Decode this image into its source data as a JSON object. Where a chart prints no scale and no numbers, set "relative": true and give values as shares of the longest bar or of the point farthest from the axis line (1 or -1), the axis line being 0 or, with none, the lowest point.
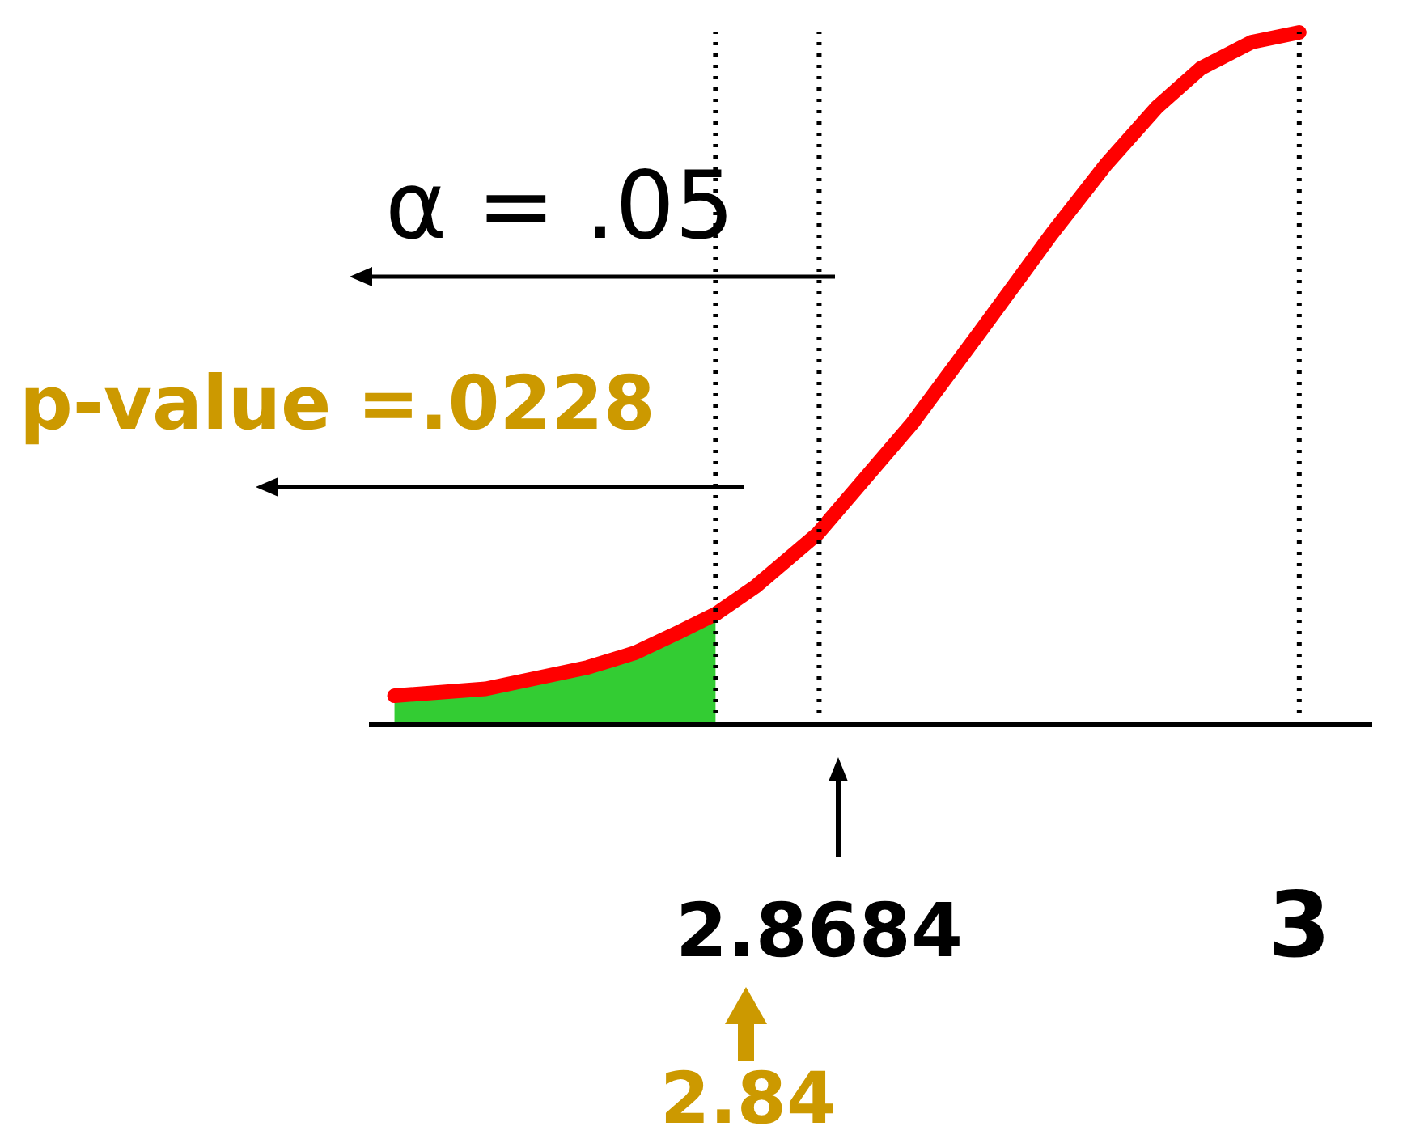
{
  "chart_data": {
    "type": "line",
    "relative": true,
    "x": [
      2.752,
      2.777,
      2.805,
      2.818,
      2.83,
      2.84,
      2.851,
      2.868,
      2.894,
      2.913,
      2.932,
      2.947,
      2.961,
      2.973,
      2.987,
      3.0
    ],
    "xlim": [
      2.745,
      3.02
    ],
    "xticks": [
      2.8684,
      3
    ],
    "series": [
      {
        "type": "area",
        "color": "#33cc33",
        "values": [
          0.042,
          0.052,
          0.083,
          0.104,
          0.134,
          0.16,
          null,
          null,
          null,
          null,
          null,
          null,
          null,
          null,
          null,
          null
        ]
      },
      {
        "color": "#ff0000",
        "values": [
          0.042,
          0.052,
          0.083,
          0.104,
          0.134,
          0.16,
          0.2,
          0.276,
          0.436,
          0.571,
          0.708,
          0.809,
          0.892,
          0.948,
          0.986,
          1
        ]
      }
    ],
    "ref_lines": [
      {
        "axis": "x",
        "value": 2.84,
        "color": "#000000",
        "line_style": "dotted"
      },
      {
        "axis": "x",
        "value": 2.8684,
        "color": "#000000",
        "line_style": "dotted"
      },
      {
        "axis": "x",
        "value": 3,
        "color": "#000000",
        "line_style": "dotted"
      }
    ],
    "annotations": [
      "α = .05",
      "p-value =.0228",
      "2.84"
    ],
    "grid": false,
    "legend": false
  }
}
